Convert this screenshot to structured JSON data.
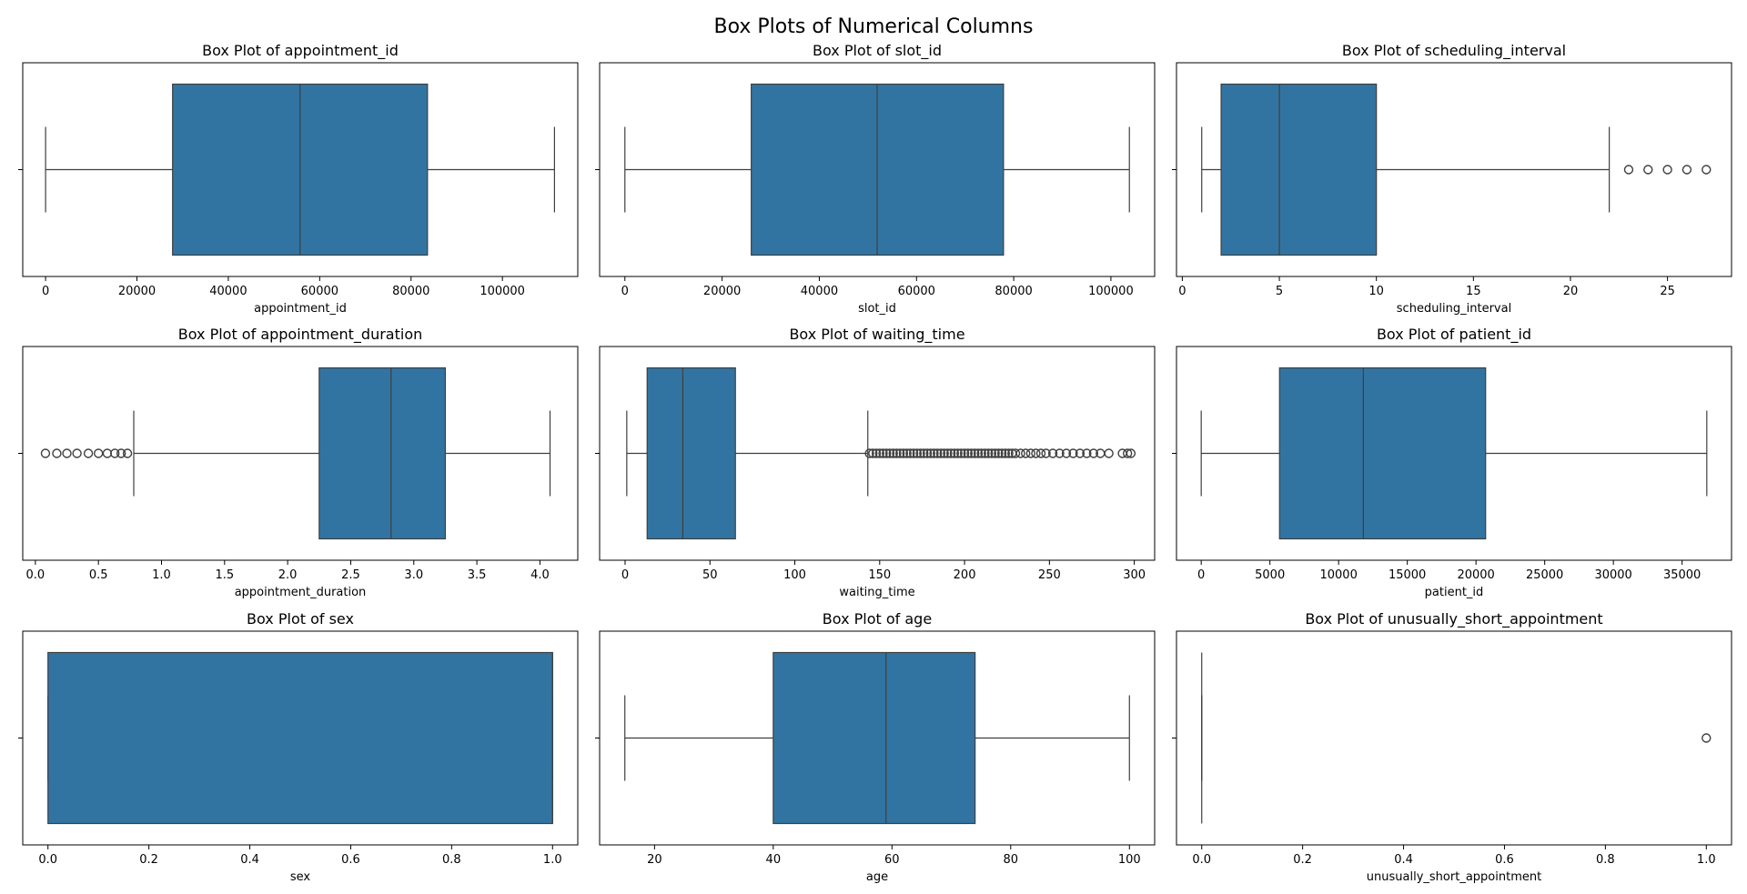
{
  "figure": {
    "suptitle": "Box Plots of Numerical Columns",
    "box_color": "#3274a1",
    "line_color": "#3f3f3f"
  },
  "chart_data": [
    {
      "type": "box",
      "title": "Box Plot of appointment_id",
      "xlabel": "appointment_id",
      "xlim": [
        -5000,
        116500
      ],
      "ticks": [
        0,
        20000,
        40000,
        60000,
        80000,
        100000
      ],
      "tick_labels": [
        "0",
        "20000",
        "40000",
        "60000",
        "80000",
        "100000"
      ],
      "whisker_low": 0,
      "q1": 27800,
      "median": 55700,
      "q3": 83600,
      "whisker_high": 111400,
      "outliers": []
    },
    {
      "type": "box",
      "title": "Box Plot of slot_id",
      "xlabel": "slot_id",
      "xlim": [
        -5200,
        109000
      ],
      "ticks": [
        0,
        20000,
        40000,
        60000,
        80000,
        100000
      ],
      "tick_labels": [
        "0",
        "20000",
        "40000",
        "60000",
        "80000",
        "100000"
      ],
      "whisker_low": 0,
      "q1": 26000,
      "median": 51900,
      "q3": 77900,
      "whisker_high": 103800,
      "outliers": []
    },
    {
      "type": "box",
      "title": "Box Plot of scheduling_interval",
      "xlabel": "scheduling_interval",
      "xlim": [
        -0.3,
        28.3
      ],
      "ticks": [
        0,
        5,
        10,
        15,
        20,
        25
      ],
      "tick_labels": [
        "0",
        "5",
        "10",
        "15",
        "20",
        "25"
      ],
      "whisker_low": 1,
      "q1": 2,
      "median": 5,
      "q3": 10,
      "whisker_high": 22,
      "outliers": [
        23,
        24,
        25,
        26,
        27
      ]
    },
    {
      "type": "box",
      "title": "Box Plot of appointment_duration",
      "xlabel": "appointment_duration",
      "xlim": [
        -0.1,
        4.3
      ],
      "ticks": [
        0,
        0.5,
        1.0,
        1.5,
        2.0,
        2.5,
        3.0,
        3.5,
        4.0
      ],
      "tick_labels": [
        "0.0",
        "0.5",
        "1.0",
        "1.5",
        "2.0",
        "2.5",
        "3.0",
        "3.5",
        "4.0"
      ],
      "whisker_low": 0.78,
      "q1": 2.25,
      "median": 2.82,
      "q3": 3.25,
      "whisker_high": 4.08,
      "outliers": [
        0.08,
        0.17,
        0.25,
        0.33,
        0.42,
        0.5,
        0.57,
        0.63,
        0.68,
        0.73
      ]
    },
    {
      "type": "box",
      "title": "Box Plot of waiting_time",
      "xlabel": "waiting_time",
      "xlim": [
        -15,
        312
      ],
      "ticks": [
        0,
        50,
        100,
        150,
        200,
        250,
        300
      ],
      "tick_labels": [
        "0",
        "50",
        "100",
        "150",
        "200",
        "250",
        "300"
      ],
      "whisker_low": 1,
      "q1": 13,
      "median": 34,
      "q3": 65,
      "whisker_high": 143,
      "outliers": [
        144,
        146,
        148,
        150,
        152,
        154,
        156,
        158,
        160,
        162,
        164,
        166,
        168,
        170,
        172,
        174,
        176,
        178,
        180,
        182,
        184,
        186,
        188,
        190,
        192,
        194,
        196,
        198,
        200,
        202,
        204,
        206,
        208,
        210,
        212,
        214,
        216,
        218,
        220,
        222,
        224,
        226,
        228,
        230,
        233,
        236,
        239,
        242,
        245,
        248,
        252,
        256,
        260,
        264,
        268,
        272,
        276,
        280,
        285,
        293,
        296,
        298
      ]
    },
    {
      "type": "box",
      "title": "Box Plot of patient_id",
      "xlabel": "patient_id",
      "xlim": [
        -1800,
        38600
      ],
      "ticks": [
        0,
        5000,
        10000,
        15000,
        20000,
        25000,
        30000,
        35000
      ],
      "tick_labels": [
        "0",
        "5000",
        "10000",
        "15000",
        "20000",
        "25000",
        "30000",
        "35000"
      ],
      "whisker_low": 0,
      "q1": 5700,
      "median": 11800,
      "q3": 20700,
      "whisker_high": 36800,
      "outliers": []
    },
    {
      "type": "box",
      "title": "Box Plot of sex",
      "xlabel": "sex",
      "xlim": [
        -0.05,
        1.05
      ],
      "ticks": [
        0,
        0.2,
        0.4,
        0.6,
        0.8,
        1.0
      ],
      "tick_labels": [
        "0.0",
        "0.2",
        "0.4",
        "0.6",
        "0.8",
        "1.0"
      ],
      "whisker_low": 0,
      "q1": 0,
      "median": 1,
      "q3": 1,
      "whisker_high": 1,
      "outliers": []
    },
    {
      "type": "box",
      "title": "Box Plot of age",
      "xlabel": "age",
      "xlim": [
        10.75,
        104.25
      ],
      "ticks": [
        20,
        40,
        60,
        80,
        100
      ],
      "tick_labels": [
        "20",
        "40",
        "60",
        "80",
        "100"
      ],
      "whisker_low": 15,
      "q1": 40,
      "median": 59,
      "q3": 74,
      "whisker_high": 100,
      "outliers": []
    },
    {
      "type": "box",
      "title": "Box Plot of unusually_short_appointment",
      "xlabel": "unusually_short_appointment",
      "xlim": [
        -0.05,
        1.05
      ],
      "ticks": [
        0,
        0.2,
        0.4,
        0.6,
        0.8,
        1.0
      ],
      "tick_labels": [
        "0.0",
        "0.2",
        "0.4",
        "0.6",
        "0.8",
        "1.0"
      ],
      "whisker_low": 0,
      "q1": 0,
      "median": 0,
      "q3": 0,
      "whisker_high": 0,
      "outliers": [
        1
      ]
    }
  ]
}
